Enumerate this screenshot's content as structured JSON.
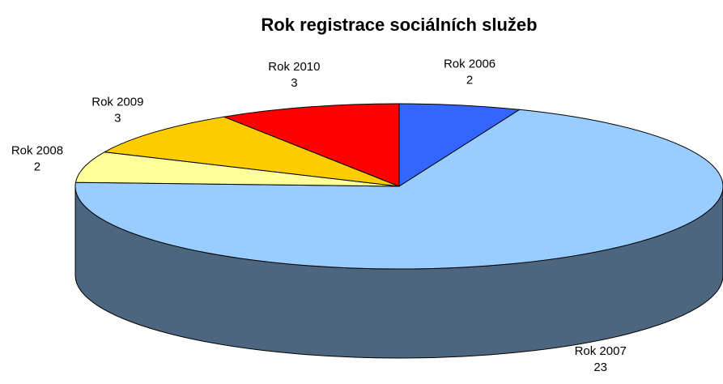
{
  "chart_data": {
    "type": "pie3d",
    "title": "Rok registrace sociálních služeb",
    "categories": [
      "Rok 2006",
      "Rok 2007",
      "Rok 2008",
      "Rok 2009",
      "Rok 2010"
    ],
    "values": [
      2,
      23,
      2,
      3,
      3
    ],
    "colors": [
      "#3366ff",
      "#99ccff",
      "#ffff99",
      "#ffcc00",
      "#ff0000"
    ]
  }
}
